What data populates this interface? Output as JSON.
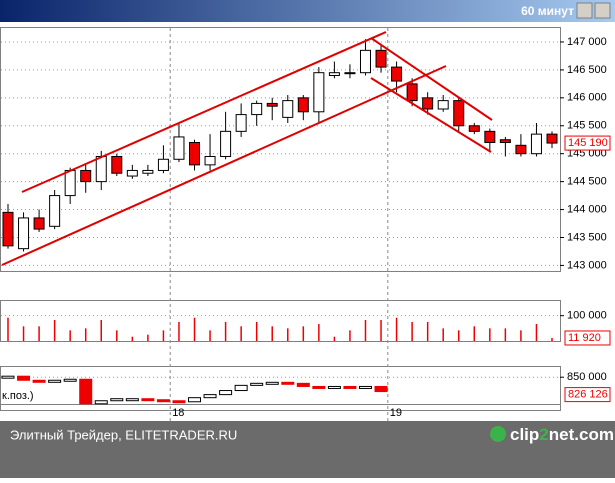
{
  "chart_data": {
    "type": "candlestick",
    "title": "60 минут",
    "categories": [
      null,
      null,
      null,
      null,
      null,
      null,
      null,
      null,
      null,
      null,
      null,
      "18",
      null,
      null,
      null,
      null,
      null,
      null,
      null,
      null,
      null,
      null,
      null,
      null,
      null,
      "19",
      null,
      null,
      null,
      null,
      null,
      null,
      null,
      null,
      null,
      null
    ],
    "open": [
      143950,
      143300,
      143850,
      143700,
      144250,
      144700,
      144500,
      144950,
      144600,
      144650,
      144700,
      144900,
      145200,
      144800,
      144950,
      145400,
      145700,
      145900,
      145650,
      146000,
      145750,
      146400,
      146450,
      146450,
      146850,
      146550,
      146250,
      146000,
      145800,
      145950,
      145500,
      145400,
      145250,
      145150,
      145000,
      145350
    ],
    "high": [
      144100,
      143950,
      144000,
      144350,
      144750,
      144800,
      145050,
      145000,
      144800,
      144800,
      145150,
      145550,
      145250,
      145350,
      145750,
      145900,
      145950,
      146000,
      146050,
      146050,
      146550,
      146650,
      146600,
      147050,
      146950,
      146650,
      146350,
      146100,
      146050,
      146000,
      145550,
      145450,
      145300,
      145350,
      145550,
      145400
    ],
    "low": [
      143300,
      143250,
      143600,
      143650,
      144100,
      144300,
      144350,
      144600,
      144550,
      144600,
      144650,
      144850,
      144700,
      144700,
      144900,
      145300,
      145500,
      145600,
      145550,
      145600,
      145550,
      146350,
      146350,
      146400,
      146450,
      146100,
      145850,
      145700,
      145750,
      145400,
      145350,
      145050,
      144950,
      144950,
      144950,
      145100
    ],
    "close": [
      143350,
      143850,
      143650,
      144250,
      144700,
      144500,
      144950,
      144650,
      144700,
      144700,
      144900,
      145300,
      144800,
      144950,
      145400,
      145700,
      145900,
      145850,
      145950,
      145750,
      146450,
      146450,
      146450,
      146850,
      146550,
      146300,
      145950,
      145800,
      145950,
      145500,
      145400,
      145200,
      145200,
      145000,
      145350,
      145190
    ],
    "up_color": "#ffffff",
    "down_color": "#ee0000",
    "ylim": [
      142900,
      147250
    ],
    "yticks": [
      {
        "value": 143000,
        "label": "143 000"
      },
      {
        "value": 143500,
        "label": "143 500"
      },
      {
        "value": 144000,
        "label": "144 000"
      },
      {
        "value": 144500,
        "label": "144 500"
      },
      {
        "value": 145000,
        "label": "145 000"
      },
      {
        "value": 145500,
        "label": "145 500"
      },
      {
        "value": 146000,
        "label": "146 000"
      },
      {
        "value": 146500,
        "label": "146 500"
      },
      {
        "value": 147000,
        "label": "147 000"
      }
    ],
    "last_label": {
      "value": 145190,
      "label": "145 190"
    },
    "volume": {
      "values": [
        92000,
        58000,
        58000,
        83000,
        42000,
        50000,
        83000,
        42000,
        17000,
        25000,
        42000,
        75000,
        92000,
        42000,
        75000,
        58000,
        75000,
        58000,
        50000,
        58000,
        67000,
        17000,
        42000,
        83000,
        83000,
        92000,
        75000,
        75000,
        50000,
        42000,
        58000,
        50000,
        50000,
        42000,
        67000,
        11920
      ],
      "ylim": [
        0,
        158000
      ],
      "yticks": [
        {
          "value": 100000,
          "label": "100 000"
        }
      ],
      "last_label": {
        "value": 11920,
        "label": "11 920"
      }
    },
    "open_interest": {
      "label": "к.поз.)",
      "values": [
        851400,
        845800,
        843000,
        845800,
        847200,
        813500,
        817700,
        820500,
        820500,
        819100,
        817700,
        816300,
        821900,
        826100,
        831700,
        838800,
        841600,
        843000,
        841600,
        837300,
        835900,
        837300,
        835900,
        837300,
        830300,
        null,
        null,
        null,
        null,
        null,
        null,
        null,
        null,
        null,
        null,
        null
      ],
      "ylim": [
        805000,
        864000
      ],
      "yticks": [
        {
          "value": 850000,
          "label": "850 000"
        }
      ],
      "last_label": {
        "value": 826126,
        "label": "826 126"
      }
    }
  },
  "footer": "Элитный Трейдер, ELITETRADER.RU",
  "logo": [
    "clip",
    "2",
    "net.com"
  ]
}
